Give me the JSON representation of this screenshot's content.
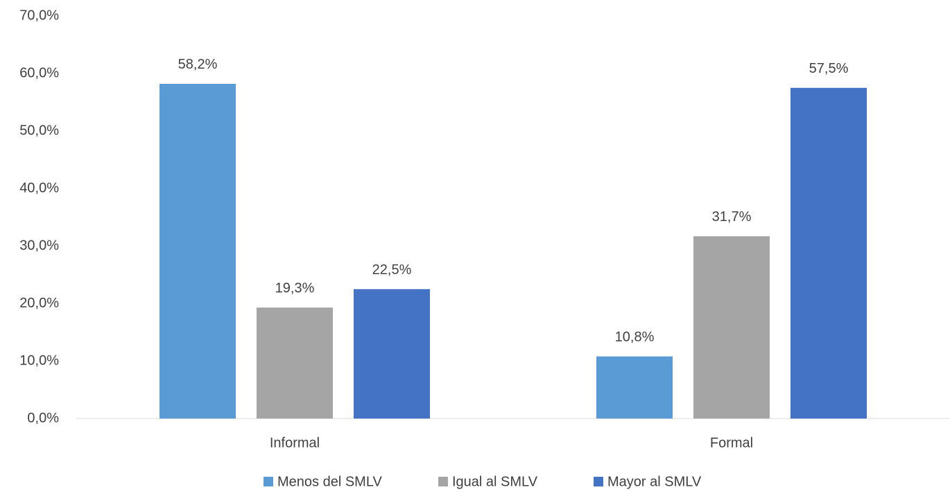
{
  "chart_data": {
    "type": "bar",
    "categories": [
      "Informal",
      "Formal"
    ],
    "series": [
      {
        "name": "Menos del SMLV",
        "color": "#5b9bd5",
        "values": [
          58.2,
          10.8
        ],
        "value_labels": [
          "58,2%",
          "10,8%"
        ]
      },
      {
        "name": "Igual al SMLV",
        "color": "#a5a5a5",
        "values": [
          19.3,
          31.7
        ],
        "value_labels": [
          "19,3%",
          "31,7%"
        ]
      },
      {
        "name": "Mayor al SMLV",
        "color": "#4472c4",
        "values": [
          22.5,
          57.5
        ],
        "value_labels": [
          "22,5%",
          "57,5%"
        ]
      }
    ],
    "ylim": [
      0,
      70
    ],
    "yticks": [
      {
        "value": 0,
        "label": "0,0%"
      },
      {
        "value": 10,
        "label": "10,0%"
      },
      {
        "value": 20,
        "label": "20,0%"
      },
      {
        "value": 30,
        "label": "30,0%"
      },
      {
        "value": 40,
        "label": "40,0%"
      },
      {
        "value": 50,
        "label": "50,0%"
      },
      {
        "value": 60,
        "label": "60,0%"
      },
      {
        "value": 70,
        "label": "70,0%"
      }
    ],
    "grid": false,
    "legend": "bottom"
  }
}
